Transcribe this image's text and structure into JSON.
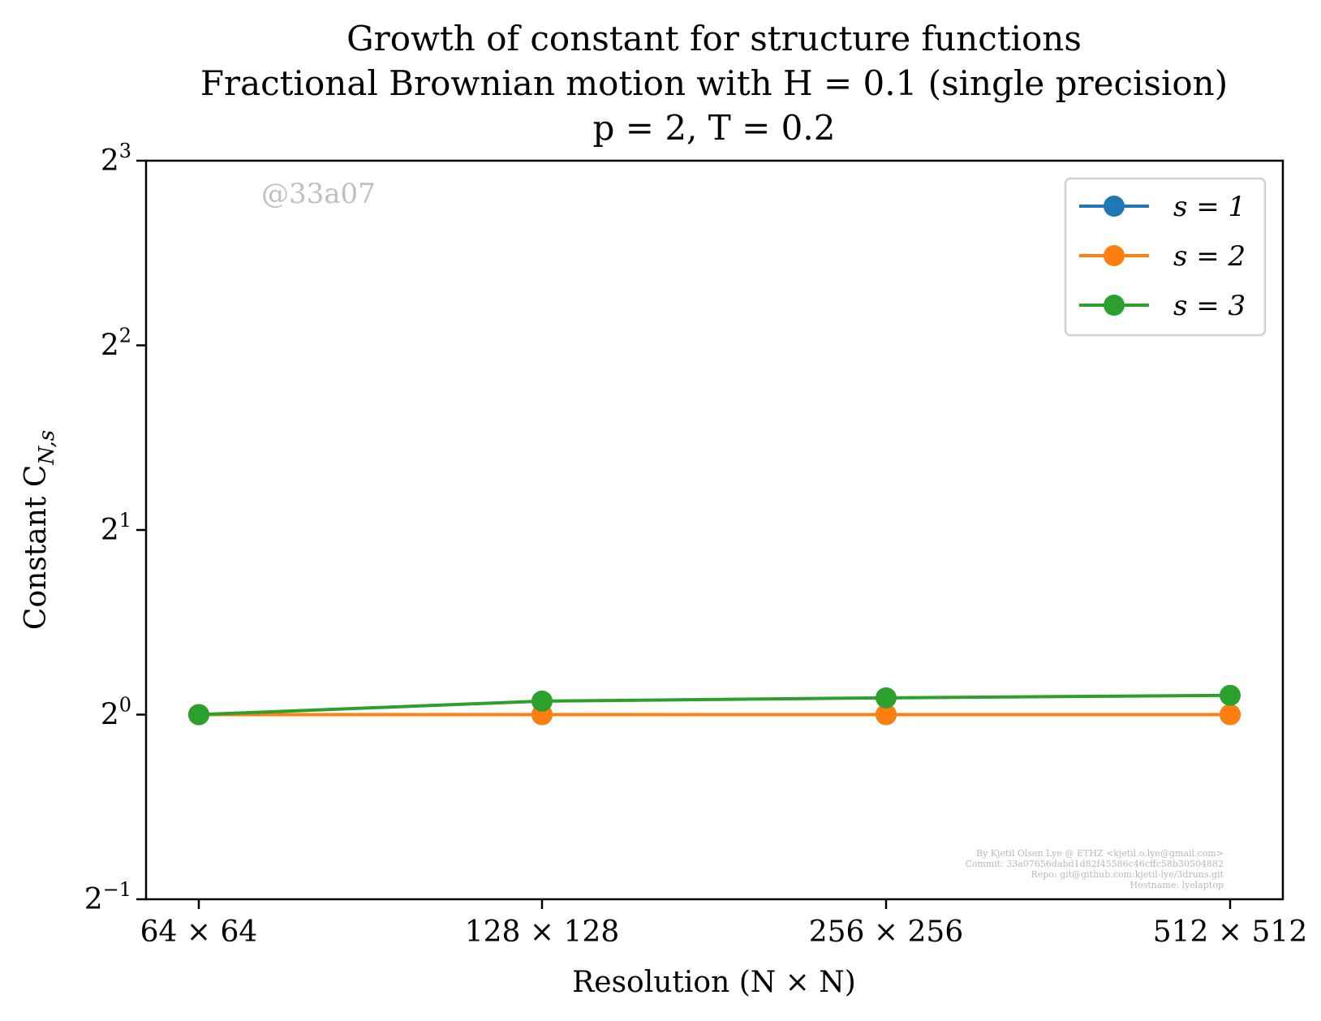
{
  "chart_data": {
    "type": "line",
    "title_lines": [
      "Growth of constant for structure functions",
      "Fractional Brownian motion with H = 0.1 (single precision)",
      "p = 2, T = 0.2"
    ],
    "xlabel": "Resolution (N × N)",
    "ylabel": "Constant C",
    "ylabel_subscript": "N,s",
    "categories": [
      "64 × 64",
      "128 × 128",
      "256 × 256",
      "512 × 512"
    ],
    "y_scale": "log2",
    "ylim": [
      0.5,
      8
    ],
    "yticks": [
      {
        "value": 0.5,
        "base": "2",
        "exp": "−1"
      },
      {
        "value": 1,
        "base": "2",
        "exp": "0"
      },
      {
        "value": 2,
        "base": "2",
        "exp": "1"
      },
      {
        "value": 4,
        "base": "2",
        "exp": "2"
      },
      {
        "value": 8,
        "base": "2",
        "exp": "3"
      }
    ],
    "grid": false,
    "legend_position": "top-right",
    "series": [
      {
        "name": "s = 1",
        "color": "#1f77b4",
        "values": [
          1.0,
          1.0,
          1.0,
          1.0
        ]
      },
      {
        "name": "s = 2",
        "color": "#ff7f0e",
        "values": [
          1.0,
          1.0,
          1.0,
          1.0
        ]
      },
      {
        "name": "s = 3",
        "color": "#2ca02c",
        "values": [
          1.0,
          1.052,
          1.065,
          1.075
        ]
      }
    ],
    "watermark": "@33a07",
    "credits": [
      "By Kjetil Olsen Lye @ ETHZ <kjetil.o.lye@gmail.com>",
      "Commit: 33a07656dabd1d82f45586c46cffc58b30504882",
      "Repo: git@github.com:kjetil-lye/3druns.git",
      "Hostname: lyelaptop"
    ]
  }
}
